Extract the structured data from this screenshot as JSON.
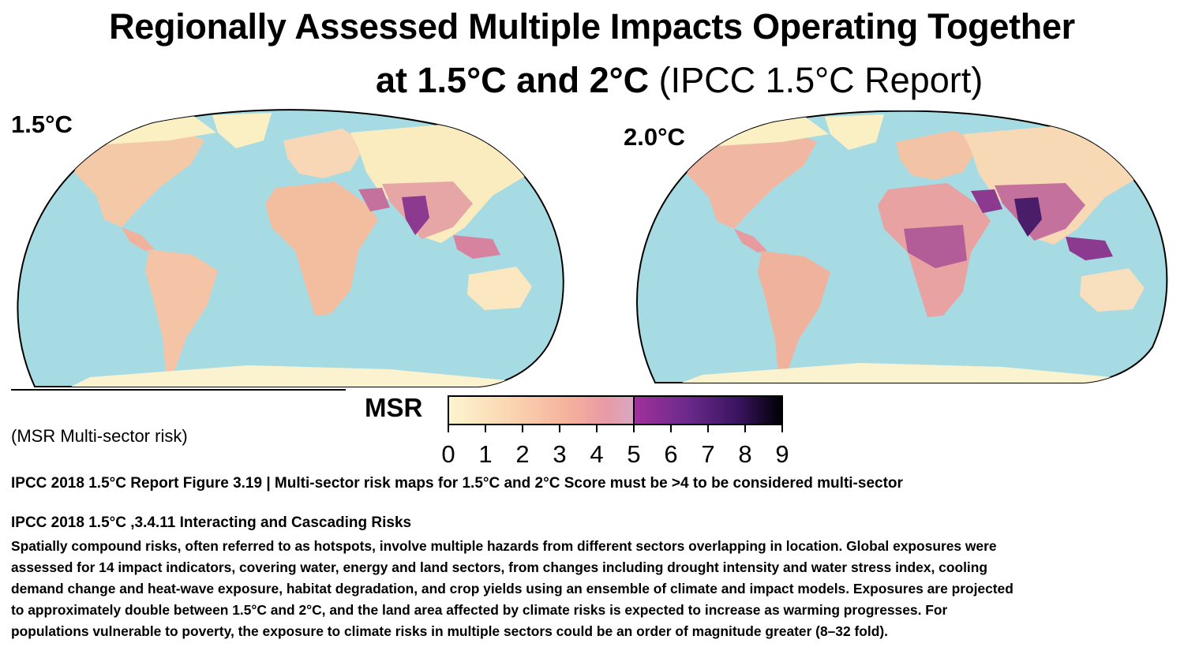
{
  "title": {
    "line1": "Regionally Assessed Multiple Impacts Operating Together",
    "line2_bold": "at 1.5°C and 2°C",
    "line2_regular": " (IPCC 1.5°C Report)"
  },
  "maps": [
    {
      "label": "1.5°C"
    },
    {
      "label": "2.0°C"
    }
  ],
  "legend": {
    "title": "MSR",
    "ticks": [
      "0",
      "1",
      "2",
      "3",
      "4",
      "5",
      "6",
      "7",
      "8",
      "9"
    ],
    "range": [
      0,
      9
    ],
    "threshold": 5,
    "colors": [
      "#fcf5cf",
      "#fbd9b4",
      "#f5b19b",
      "#e89aa6",
      "#d9a8c4",
      "#a1309a",
      "#6d2a8c",
      "#3a1460",
      "#000004"
    ]
  },
  "msr_note": "(MSR Multi-sector risk)",
  "figure_caption": "IPCC 2018 1.5°C Report Figure 3.19 | Multi-sector risk maps for 1.5°C and  2°C  Score must be >4 to be considered multi-sector",
  "section_title": "IPCC 2018 1.5°C ,3.4.11 Interacting and Cascading Risks",
  "body_lines": [
    "Spatially compound risks, often referred to as hotspots, involve multiple hazards from different sectors overlapping in location. Global exposures were",
    "assessed for 14 impact indicators, covering water, energy and land sectors, from changes including drought intensity and water stress index, cooling",
    "demand change and heat-wave exposure, habitat degradation, and crop yields using an ensemble of climate and impact models. Exposures are projected",
    "to approximately double between 1.5°C and 2°C, and the land area affected by climate risks is expected to increase as warming progresses. For",
    "populations vulnerable to poverty, the exposure to climate risks in multiple sectors could be an order of magnitude greater (8–32 fold)."
  ],
  "colors": {
    "ocean": "#a7dbe3",
    "land_low": "#fbf0c3",
    "land_mid": "#f3c1a4",
    "hotspot": "#8b3a8f",
    "hotspot_dark": "#4a1d6b",
    "border": "#000000"
  }
}
